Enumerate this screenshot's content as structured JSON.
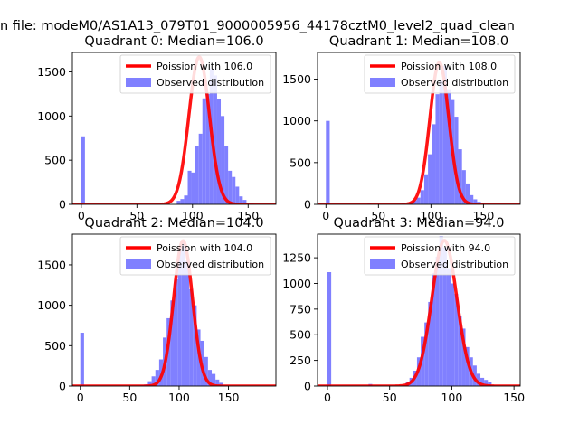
{
  "suptitle": "n file: modeM0/AS1A13_079T01_9000005956_44178cztM0_level2_quad_clean",
  "colors": {
    "poisson": "#ff0000",
    "observed": "#8080ff"
  },
  "chart_data": [
    {
      "type": "bar",
      "title": "Quadrant 0: Median=106.0",
      "xlim": [
        -8,
        175
      ],
      "ylim": [
        0,
        1720
      ],
      "xticks": [
        0,
        50,
        100,
        150
      ],
      "yticks": [
        0,
        500,
        1000,
        1500
      ],
      "bins_start": 0,
      "bin_width": 3.3,
      "observed": [
        770,
        0,
        0,
        0,
        0,
        0,
        0,
        0,
        0,
        0,
        0,
        0,
        0,
        0,
        0,
        0,
        0,
        0,
        0,
        0,
        0,
        0,
        0,
        0,
        0,
        0,
        40,
        60,
        100,
        380,
        360,
        660,
        800,
        1200,
        1250,
        1540,
        1460,
        1190,
        1000,
        660,
        380,
        310,
        200,
        90,
        50,
        20,
        10,
        5,
        0,
        0
      ],
      "poisson": {
        "mean": 106.0,
        "sigma": 9.2,
        "peak": 1670
      },
      "legend": [
        "Poission with 106.0",
        "Observed distribution"
      ]
    },
    {
      "type": "bar",
      "title": "Quadrant 1: Median=108.0",
      "xlim": [
        -8,
        185
      ],
      "ylim": [
        0,
        1820
      ],
      "xticks": [
        0,
        50,
        100,
        150
      ],
      "yticks": [
        0,
        500,
        1000,
        1500
      ],
      "bins_start": 0,
      "bin_width": 3.6,
      "observed": [
        1000,
        0,
        0,
        0,
        0,
        0,
        0,
        0,
        0,
        0,
        0,
        15,
        0,
        0,
        0,
        0,
        0,
        0,
        0,
        0,
        20,
        0,
        25,
        50,
        80,
        170,
        360,
        600,
        960,
        1320,
        1480,
        1660,
        1380,
        1250,
        1050,
        660,
        410,
        250,
        110,
        60,
        30,
        10,
        5,
        0,
        0,
        0,
        0,
        0,
        0,
        0
      ],
      "poisson": {
        "mean": 108.0,
        "sigma": 9.0,
        "peak": 1700
      },
      "legend": [
        "Poission with 108.0",
        "Observed distribution"
      ]
    },
    {
      "type": "bar",
      "title": "Quadrant 2: Median=104.0",
      "xlim": [
        -8,
        198
      ],
      "ylim": [
        0,
        1880
      ],
      "xticks": [
        0,
        50,
        100,
        150
      ],
      "yticks": [
        0,
        500,
        1000,
        1500
      ],
      "bins_start": 0,
      "bin_width": 3.8,
      "observed": [
        660,
        0,
        0,
        0,
        0,
        0,
        0,
        0,
        0,
        0,
        0,
        0,
        0,
        0,
        0,
        5,
        10,
        20,
        60,
        120,
        200,
        330,
        600,
        840,
        1060,
        1320,
        1690,
        1800,
        1550,
        1200,
        1000,
        700,
        560,
        360,
        200,
        150,
        80,
        40,
        10,
        5,
        0,
        0,
        0,
        0,
        0,
        0,
        0,
        0,
        0,
        0
      ],
      "poisson": {
        "mean": 104.0,
        "sigma": 9.5,
        "peak": 1800
      },
      "legend": [
        "Poission with 104.0",
        "Observed distribution"
      ]
    },
    {
      "type": "bar",
      "title": "Quadrant 3: Median=94.0",
      "xlim": [
        -8,
        155
      ],
      "ylim": [
        0,
        1480
      ],
      "xticks": [
        0,
        50,
        100,
        150
      ],
      "yticks": [
        0,
        250,
        500,
        750,
        1000,
        1250
      ],
      "bins_start": 0,
      "bin_width": 3.0,
      "observed": [
        1110,
        0,
        0,
        0,
        0,
        0,
        0,
        0,
        0,
        0,
        0,
        20,
        0,
        0,
        0,
        0,
        0,
        0,
        0,
        0,
        10,
        40,
        80,
        150,
        280,
        480,
        620,
        820,
        1100,
        1260,
        1460,
        1350,
        1150,
        1000,
        900,
        680,
        560,
        380,
        280,
        200,
        120,
        80,
        60,
        40,
        10,
        5,
        0,
        0,
        0,
        0
      ],
      "poisson": {
        "mean": 94.0,
        "sigma": 10.0,
        "peak": 1420
      },
      "legend": [
        "Poission with 94.0",
        "Observed distribution"
      ]
    }
  ]
}
